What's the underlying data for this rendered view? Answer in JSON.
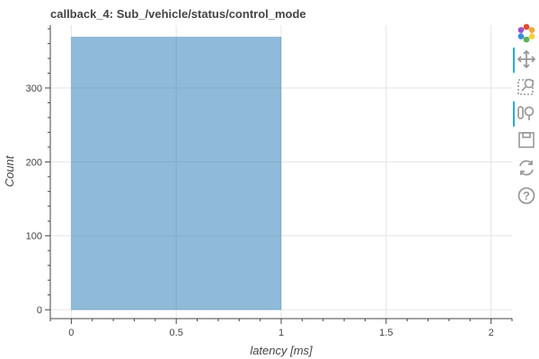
{
  "chart_data": {
    "type": "bar",
    "title": "callback_4: Sub_/vehicle/status/control_mode",
    "xlabel": "latency [ms]",
    "ylabel": "Count",
    "xlim": [
      -0.1,
      2.1
    ],
    "ylim": [
      -12,
      385
    ],
    "x_ticks": [
      0,
      0.5,
      1,
      1.5,
      2
    ],
    "x_tick_labels": [
      "0",
      "0.5",
      "1",
      "1.5",
      "2"
    ],
    "y_ticks": [
      0,
      100,
      200,
      300
    ],
    "y_tick_labels": [
      "0",
      "100",
      "200",
      "300"
    ],
    "bins": [
      {
        "x_start": 0,
        "x_end": 1,
        "count": 369
      }
    ],
    "grid": true,
    "legend": "none",
    "colors": {
      "bar": "#1f77b4",
      "grid": "#e5e5e5",
      "axis": "#444444"
    }
  },
  "toolbar": {
    "tools": [
      {
        "icon": "bokeh-logo-icon",
        "active": false
      },
      {
        "icon": "pan-icon",
        "active": true
      },
      {
        "icon": "box-zoom-icon",
        "active": false
      },
      {
        "icon": "wheel-zoom-icon",
        "active": true
      },
      {
        "icon": "save-icon",
        "active": false
      },
      {
        "icon": "reset-icon",
        "active": false
      },
      {
        "icon": "help-icon",
        "active": false
      }
    ]
  }
}
